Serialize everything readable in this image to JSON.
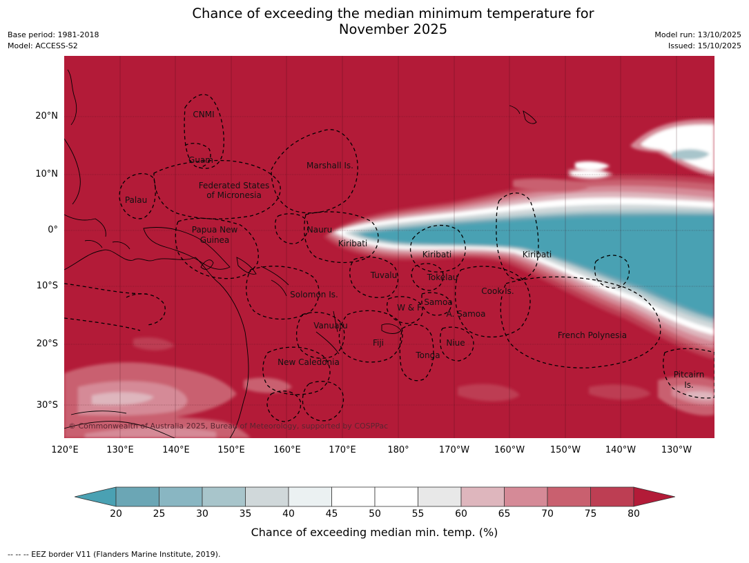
{
  "title_line1": "Chance of exceeding the median minimum temperature for",
  "title_line2": "November 2025",
  "meta": {
    "base_period": "Base period: 1981-2018",
    "model": "Model: ACCESS-S2",
    "model_run": "Model run: 13/10/2025",
    "issued": "Issued: 15/10/2025"
  },
  "map": {
    "lat_labels": [
      "20°N",
      "10°N",
      "0°",
      "10°S",
      "20°S",
      "30°S"
    ],
    "lon_labels": [
      "120°E",
      "130°E",
      "140°E",
      "150°E",
      "160°E",
      "170°E",
      "180°",
      "170°W",
      "160°W",
      "150°W",
      "140°W",
      "130°W"
    ],
    "regions": {
      "cnmi": "CNMI",
      "guam": "Guam",
      "marshall": "Marshall Is.",
      "fsm1": "Federated States",
      "fsm2": "of Micronesia",
      "palau": "Palau",
      "png1": "Papua New",
      "png2": "Guinea",
      "nauru": "Nauru",
      "kiribati_w": "Kiribati",
      "kiribati_c": "Kiribati",
      "kiribati_e": "Kiribati",
      "tuvalu": "Tuvalu",
      "tokelau": "Tokelau",
      "cook": "Cook Is.",
      "solomon": "Solomon Is.",
      "wf": "W & F",
      "samoa": "Samoa",
      "asamoa": "A. Samoa",
      "vanuatu": "Vanuatu",
      "fiji": "Fiji",
      "niue": "Niue",
      "tonga": "Tonga",
      "french_polynesia": "French Polynesia",
      "new_caledonia": "New Caledonia",
      "pitcairn1": "Pitcairn",
      "pitcairn2": "Is."
    },
    "copyright": "© Commonwealth of Australia 2025, Bureau of Meteorology, supported by COSPPac",
    "colors": {
      "high": "#b31b38",
      "low": "#4aa1b3",
      "neutral": "#ffffff"
    }
  },
  "colorbar": {
    "ticks": [
      "20",
      "25",
      "30",
      "35",
      "40",
      "45",
      "50",
      "55",
      "60",
      "65",
      "70",
      "75",
      "80"
    ],
    "colors": [
      "#6ba6b5",
      "#89b6c2",
      "#a8c5cb",
      "#d0d8da",
      "#ebf1f2",
      "#ffffff",
      "#ffffff",
      "#e8e8e8",
      "#deb6bd",
      "#d58a97",
      "#c9606f",
      "#bd3e53"
    ],
    "low_extend": "#4aa1b3",
    "high_extend": "#b31b38",
    "title": "Chance of exceeding median min. temp. (%)"
  },
  "footnote": "--  --  -- EEZ border V11 (Flanders Marine Institute, 2019)."
}
